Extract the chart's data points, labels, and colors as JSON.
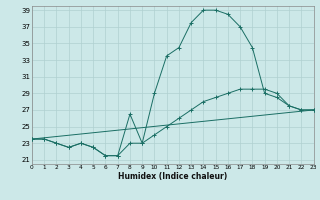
{
  "xlabel": "Humidex (Indice chaleur)",
  "bg_color": "#cce8e8",
  "grid_color": "#b0d0d0",
  "line_color": "#1a6e64",
  "xlim": [
    0,
    23
  ],
  "ylim": [
    20.5,
    39.5
  ],
  "yticks": [
    21,
    23,
    25,
    27,
    29,
    31,
    33,
    35,
    37,
    39
  ],
  "xticks": [
    0,
    1,
    2,
    3,
    4,
    5,
    6,
    7,
    8,
    9,
    10,
    11,
    12,
    13,
    14,
    15,
    16,
    17,
    18,
    19,
    20,
    21,
    22,
    23
  ],
  "series1_x": [
    0,
    1,
    2,
    3,
    4,
    5,
    6,
    7,
    8,
    9,
    10,
    11,
    12,
    13,
    14,
    15,
    16,
    17,
    18,
    19,
    20,
    21,
    22,
    23
  ],
  "series1_y": [
    23.5,
    23.5,
    23.0,
    22.5,
    23.0,
    22.5,
    21.5,
    21.5,
    26.5,
    23.0,
    29.0,
    33.5,
    34.5,
    37.5,
    39.0,
    39.0,
    38.5,
    37.0,
    34.5,
    29.0,
    28.5,
    27.5,
    27.0,
    27.0
  ],
  "series2_x": [
    0,
    1,
    2,
    3,
    4,
    5,
    6,
    7,
    8,
    9,
    10,
    11,
    12,
    13,
    14,
    15,
    16,
    17,
    18,
    19,
    20,
    21,
    22,
    23
  ],
  "series2_y": [
    23.5,
    23.5,
    23.0,
    22.5,
    23.0,
    22.5,
    21.5,
    21.5,
    23.0,
    23.0,
    24.0,
    25.0,
    26.0,
    27.0,
    28.0,
    28.5,
    29.0,
    29.5,
    29.5,
    29.5,
    29.0,
    27.5,
    27.0,
    27.0
  ],
  "series3_x": [
    0,
    23
  ],
  "series3_y": [
    23.5,
    27.0
  ]
}
